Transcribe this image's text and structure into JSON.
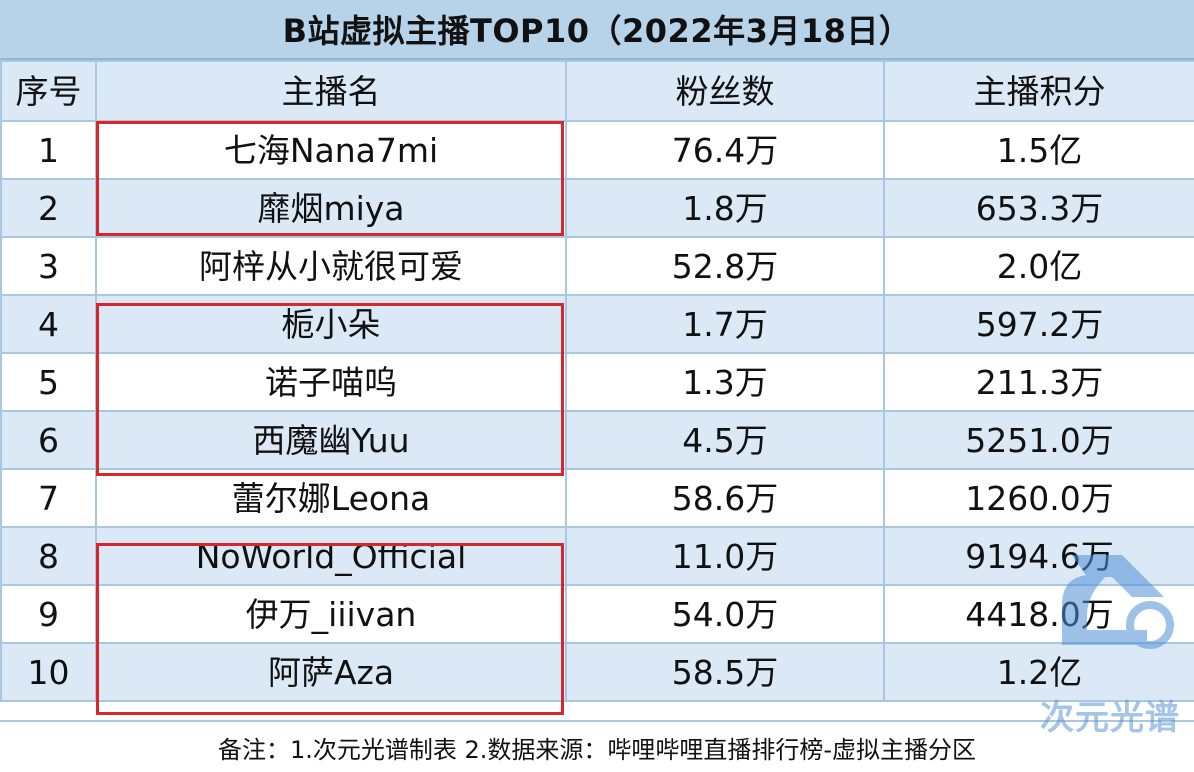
{
  "title": "B站虚拟主播TOP10（2022年3月18日）",
  "columns": [
    "序号",
    "主播名",
    "粉丝数",
    "主播积分"
  ],
  "rows": [
    {
      "rank": "1",
      "name": "七海Nana7mi",
      "fans": "76.4万",
      "score": "1.5亿"
    },
    {
      "rank": "2",
      "name": "靡烟miya",
      "fans": "1.8万",
      "score": "653.3万"
    },
    {
      "rank": "3",
      "name": "阿梓从小就很可爱",
      "fans": "52.8万",
      "score": "2.0亿"
    },
    {
      "rank": "4",
      "name": "栀小朵",
      "fans": "1.7万",
      "score": "597.2万"
    },
    {
      "rank": "5",
      "name": "诺子喵呜",
      "fans": "1.3万",
      "score": "211.3万"
    },
    {
      "rank": "6",
      "name": "西魔幽Yuu",
      "fans": "4.5万",
      "score": "5251.0万"
    },
    {
      "rank": "7",
      "name": "蕾尔娜Leona",
      "fans": "58.6万",
      "score": "1260.0万"
    },
    {
      "rank": "8",
      "name": "NoWorld_Official",
      "fans": "11.0万",
      "score": "9194.6万"
    },
    {
      "rank": "9",
      "name": "伊万_iiivan",
      "fans": "54.0万",
      "score": "4418.0万"
    },
    {
      "rank": "10",
      "name": "阿萨Aza",
      "fans": "58.5万",
      "score": "1.2亿"
    }
  ],
  "footer": "备注：1.次元光谱制表 2.数据来源：哔哩哔哩直播排行榜-虚拟主播分区",
  "watermark": "次元光谱",
  "colors": {
    "header_bg": "#b7d3ea",
    "row_alt_bg": "#dbe9f6",
    "border": "#a9c7e2",
    "highlight": "#d9262a"
  }
}
